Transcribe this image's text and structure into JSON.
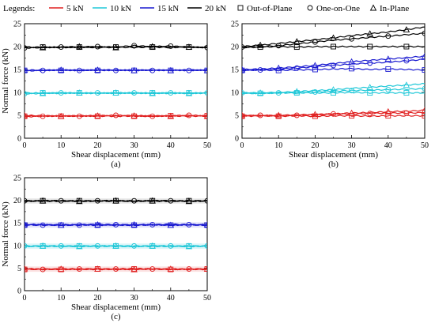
{
  "legend": {
    "title": "Legends:",
    "load_entries": [
      {
        "label": "5 kN",
        "color": "#e02020"
      },
      {
        "label": "10 kN",
        "color": "#20c8d8"
      },
      {
        "label": "15 kN",
        "color": "#1a1ad0"
      },
      {
        "label": "20 kN",
        "color": "#000000"
      }
    ],
    "marker_entries": [
      {
        "label": "Out-of-Plane",
        "marker": "square"
      },
      {
        "label": "One-on-One",
        "marker": "circle"
      },
      {
        "label": "In-Plane",
        "marker": "triangle"
      }
    ]
  },
  "chart_data": [
    {
      "type": "line",
      "panel": "(a)",
      "xlabel": "Shear displacement (mm)",
      "ylabel": "Normal force (kN)",
      "xlim": [
        0,
        50
      ],
      "ylim": [
        0,
        25
      ],
      "xticks": [
        0,
        10,
        20,
        30,
        40,
        50
      ],
      "yticks": [
        0,
        5,
        10,
        15,
        20,
        25
      ],
      "grid": false,
      "x": [
        0,
        5,
        10,
        15,
        20,
        25,
        30,
        35,
        40,
        45,
        50
      ],
      "series": [
        {
          "load": "5 kN",
          "setup": "Out-of-Plane",
          "color": "#e02020",
          "marker": "square",
          "values": [
            4.8,
            4.9,
            4.8,
            4.9,
            4.8,
            4.9,
            4.8,
            4.8,
            4.9,
            4.8,
            4.9
          ]
        },
        {
          "load": "5 kN",
          "setup": "One-on-One",
          "color": "#e02020",
          "marker": "circle",
          "values": [
            4.7,
            4.8,
            4.9,
            4.8,
            4.9,
            5.0,
            4.9,
            4.8,
            4.9,
            5.0,
            4.9
          ]
        },
        {
          "load": "5 kN",
          "setup": "In-Plane",
          "color": "#e02020",
          "marker": "triangle",
          "values": [
            5.0,
            4.9,
            4.8,
            4.9,
            4.9,
            4.8,
            4.9,
            4.9,
            4.8,
            4.9,
            4.8
          ]
        },
        {
          "load": "10 kN",
          "setup": "Out-of-Plane",
          "color": "#20c8d8",
          "marker": "square",
          "values": [
            9.8,
            9.9,
            9.8,
            9.9,
            9.8,
            9.9,
            9.8,
            9.9,
            9.8,
            9.9,
            9.8
          ]
        },
        {
          "load": "10 kN",
          "setup": "One-on-One",
          "color": "#20c8d8",
          "marker": "circle",
          "values": [
            9.7,
            9.8,
            9.9,
            9.8,
            9.9,
            9.8,
            9.9,
            9.8,
            9.9,
            9.8,
            9.9
          ]
        },
        {
          "load": "10 kN",
          "setup": "In-Plane",
          "color": "#20c8d8",
          "marker": "triangle",
          "values": [
            9.9,
            9.8,
            9.9,
            9.9,
            9.8,
            9.9,
            9.9,
            9.8,
            9.9,
            9.8,
            9.9
          ]
        },
        {
          "load": "15 kN",
          "setup": "Out-of-Plane",
          "color": "#1a1ad0",
          "marker": "square",
          "values": [
            14.8,
            14.9,
            14.8,
            14.9,
            14.8,
            14.9,
            14.8,
            14.9,
            14.8,
            14.9,
            14.8
          ]
        },
        {
          "load": "15 kN",
          "setup": "One-on-One",
          "color": "#1a1ad0",
          "marker": "circle",
          "values": [
            14.7,
            14.8,
            14.9,
            14.8,
            14.9,
            14.8,
            14.9,
            14.8,
            14.9,
            14.8,
            14.9
          ]
        },
        {
          "load": "15 kN",
          "setup": "In-Plane",
          "color": "#1a1ad0",
          "marker": "triangle",
          "values": [
            14.9,
            14.8,
            14.9,
            14.8,
            14.9,
            14.9,
            14.8,
            14.9,
            14.8,
            14.9,
            14.8
          ]
        },
        {
          "load": "20 kN",
          "setup": "Out-of-Plane",
          "color": "#000000",
          "marker": "square",
          "values": [
            19.8,
            19.9,
            19.8,
            19.9,
            19.8,
            19.9,
            19.8,
            19.9,
            19.8,
            19.9,
            19.8
          ]
        },
        {
          "load": "20 kN",
          "setup": "One-on-One",
          "color": "#000000",
          "marker": "circle",
          "values": [
            19.7,
            19.8,
            19.9,
            19.8,
            20.0,
            19.9,
            20.2,
            20.0,
            20.1,
            19.9,
            19.8
          ]
        },
        {
          "load": "20 kN",
          "setup": "In-Plane",
          "color": "#000000",
          "marker": "triangle",
          "values": [
            19.9,
            19.8,
            19.9,
            20.0,
            19.9,
            19.8,
            19.9,
            20.0,
            19.9,
            19.9,
            19.8
          ]
        }
      ]
    },
    {
      "type": "line",
      "panel": "(b)",
      "xlabel": "Shear displacement (mm)",
      "ylabel": "",
      "xlim": [
        0,
        50
      ],
      "ylim": [
        0,
        25
      ],
      "xticks": [
        0,
        10,
        20,
        30,
        40,
        50
      ],
      "yticks": [
        0,
        5,
        10,
        15,
        20,
        25
      ],
      "grid": false,
      "x": [
        0,
        5,
        10,
        15,
        20,
        25,
        30,
        35,
        40,
        45,
        50
      ],
      "series": [
        {
          "load": "5 kN",
          "setup": "Out-of-Plane",
          "color": "#e02020",
          "marker": "square",
          "values": [
            4.8,
            4.9,
            4.8,
            4.9,
            4.8,
            4.9,
            4.9,
            4.8,
            4.9,
            4.9,
            4.9
          ]
        },
        {
          "load": "5 kN",
          "setup": "One-on-One",
          "color": "#e02020",
          "marker": "circle",
          "values": [
            4.9,
            5.0,
            4.9,
            5.0,
            5.1,
            5.3,
            5.3,
            5.4,
            5.5,
            5.5,
            5.6
          ]
        },
        {
          "load": "5 kN",
          "setup": "In-Plane",
          "color": "#e02020",
          "marker": "triangle",
          "values": [
            5.0,
            4.9,
            5.0,
            5.1,
            5.2,
            5.3,
            5.5,
            5.6,
            5.8,
            5.9,
            6.1
          ]
        },
        {
          "load": "10 kN",
          "setup": "Out-of-Plane",
          "color": "#20c8d8",
          "marker": "square",
          "values": [
            9.8,
            9.8,
            9.9,
            9.9,
            9.9,
            9.9,
            10.0,
            9.9,
            9.9,
            9.9,
            9.9
          ]
        },
        {
          "load": "10 kN",
          "setup": "One-on-One",
          "color": "#20c8d8",
          "marker": "circle",
          "values": [
            9.9,
            9.8,
            9.9,
            10.0,
            10.1,
            10.3,
            10.4,
            10.5,
            10.6,
            10.7,
            10.8
          ]
        },
        {
          "load": "10 kN",
          "setup": "In-Plane",
          "color": "#20c8d8",
          "marker": "triangle",
          "values": [
            9.9,
            9.9,
            10.0,
            10.2,
            10.4,
            10.6,
            10.9,
            11.1,
            11.4,
            11.6,
            11.9
          ]
        },
        {
          "load": "15 kN",
          "setup": "Out-of-Plane",
          "color": "#1a1ad0",
          "marker": "square",
          "values": [
            14.8,
            14.9,
            14.8,
            14.9,
            15.0,
            15.1,
            15.2,
            15.0,
            15.1,
            15.0,
            14.9
          ]
        },
        {
          "load": "15 kN",
          "setup": "One-on-One",
          "color": "#1a1ad0",
          "marker": "circle",
          "values": [
            14.9,
            14.9,
            15.1,
            15.3,
            15.6,
            15.9,
            16.2,
            16.4,
            16.6,
            16.9,
            17.2
          ]
        },
        {
          "load": "15 kN",
          "setup": "In-Plane",
          "color": "#1a1ad0",
          "marker": "triangle",
          "values": [
            15.0,
            15.1,
            15.3,
            15.6,
            15.9,
            16.3,
            16.7,
            17.0,
            17.3,
            17.6,
            17.9
          ]
        },
        {
          "load": "20 kN",
          "setup": "Out-of-Plane",
          "color": "#000000",
          "marker": "square",
          "values": [
            19.8,
            19.9,
            20.0,
            19.9,
            20.0,
            20.0,
            20.0,
            20.0,
            20.0,
            20.0,
            20.0
          ]
        },
        {
          "load": "20 kN",
          "setup": "One-on-One",
          "color": "#000000",
          "marker": "circle",
          "values": [
            19.9,
            20.0,
            20.2,
            20.6,
            21.0,
            21.4,
            21.7,
            22.0,
            22.3,
            22.6,
            22.9
          ]
        },
        {
          "load": "20 kN",
          "setup": "In-Plane",
          "color": "#000000",
          "marker": "triangle",
          "values": [
            20.0,
            20.3,
            20.7,
            21.1,
            21.5,
            21.9,
            22.4,
            22.8,
            23.2,
            23.7,
            24.3
          ]
        }
      ]
    },
    {
      "type": "line",
      "panel": "(c)",
      "xlabel": "Shear displacement (mm)",
      "ylabel": "Normal force (kN)",
      "xlim": [
        0,
        50
      ],
      "ylim": [
        0,
        25
      ],
      "xticks": [
        0,
        10,
        20,
        30,
        40,
        50
      ],
      "yticks": [
        0,
        5,
        10,
        15,
        20,
        25
      ],
      "grid": false,
      "x": [
        0,
        5,
        10,
        15,
        20,
        25,
        30,
        35,
        40,
        45,
        50
      ],
      "series": [
        {
          "load": "5 kN",
          "setup": "Out-of-Plane",
          "color": "#e02020",
          "marker": "square",
          "values": [
            4.7,
            4.8,
            4.7,
            4.8,
            4.8,
            4.7,
            4.8,
            4.8,
            4.7,
            4.8,
            4.8
          ]
        },
        {
          "load": "5 kN",
          "setup": "One-on-One",
          "color": "#e02020",
          "marker": "circle",
          "values": [
            4.8,
            4.7,
            4.8,
            4.8,
            4.7,
            4.8,
            4.9,
            4.8,
            4.7,
            4.8,
            4.7
          ]
        },
        {
          "load": "5 kN",
          "setup": "In-Plane",
          "color": "#e02020",
          "marker": "triangle",
          "values": [
            4.9,
            4.7,
            4.8,
            4.7,
            4.8,
            4.8,
            4.7,
            4.8,
            4.8,
            4.7,
            4.8
          ]
        },
        {
          "load": "10 kN",
          "setup": "Out-of-Plane",
          "color": "#20c8d8",
          "marker": "square",
          "values": [
            9.8,
            9.9,
            9.8,
            9.9,
            9.8,
            9.9,
            9.8,
            9.9,
            9.8,
            9.9,
            9.8
          ]
        },
        {
          "load": "10 kN",
          "setup": "One-on-One",
          "color": "#20c8d8",
          "marker": "circle",
          "values": [
            9.9,
            9.8,
            9.9,
            9.8,
            9.9,
            9.8,
            9.9,
            9.8,
            9.9,
            9.8,
            9.9
          ]
        },
        {
          "load": "10 kN",
          "setup": "In-Plane",
          "color": "#20c8d8",
          "marker": "triangle",
          "values": [
            9.8,
            9.9,
            9.9,
            9.8,
            9.9,
            9.9,
            9.8,
            9.9,
            9.9,
            9.8,
            9.9
          ]
        },
        {
          "load": "15 kN",
          "setup": "Out-of-Plane",
          "color": "#1a1ad0",
          "marker": "square",
          "values": [
            14.5,
            14.6,
            14.5,
            14.6,
            14.5,
            14.6,
            14.5,
            14.6,
            14.5,
            14.6,
            14.5
          ]
        },
        {
          "load": "15 kN",
          "setup": "One-on-One",
          "color": "#1a1ad0",
          "marker": "circle",
          "values": [
            14.6,
            14.5,
            14.6,
            14.5,
            14.7,
            14.6,
            14.5,
            14.6,
            14.7,
            14.6,
            14.5
          ]
        },
        {
          "load": "15 kN",
          "setup": "In-Plane",
          "color": "#1a1ad0",
          "marker": "triangle",
          "values": [
            14.7,
            14.6,
            14.5,
            14.6,
            14.6,
            14.5,
            14.6,
            14.6,
            14.5,
            14.6,
            14.6
          ]
        },
        {
          "load": "20 kN",
          "setup": "Out-of-Plane",
          "color": "#000000",
          "marker": "square",
          "values": [
            19.8,
            19.9,
            19.8,
            19.9,
            19.8,
            19.9,
            19.8,
            19.9,
            19.8,
            19.9,
            19.8
          ]
        },
        {
          "load": "20 kN",
          "setup": "One-on-One",
          "color": "#000000",
          "marker": "circle",
          "values": [
            19.9,
            19.8,
            19.9,
            19.8,
            19.9,
            19.8,
            19.9,
            19.8,
            19.9,
            19.8,
            19.9
          ]
        },
        {
          "load": "20 kN",
          "setup": "In-Plane",
          "color": "#000000",
          "marker": "triangle",
          "values": [
            19.8,
            19.9,
            19.9,
            19.8,
            19.9,
            19.9,
            19.8,
            19.9,
            19.9,
            19.8,
            19.9
          ]
        }
      ]
    }
  ]
}
